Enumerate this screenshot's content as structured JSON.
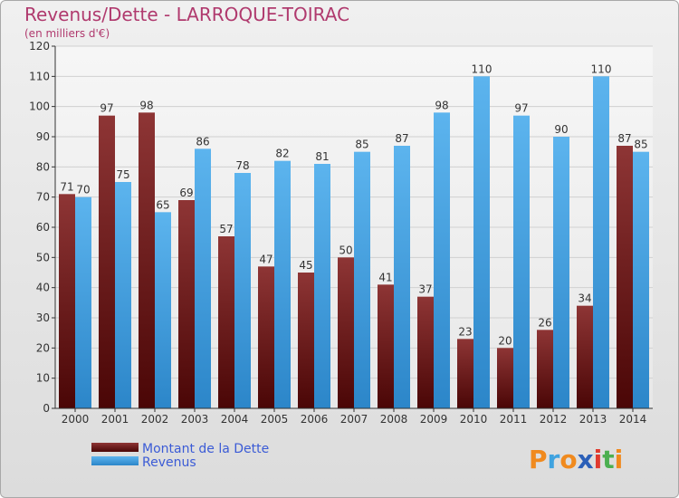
{
  "chart_data": {
    "type": "bar",
    "title": "Revenus/Dette - LARROQUE-TOIRAC",
    "subtitle": "(en milliers d'€)",
    "categories": [
      "2000",
      "2001",
      "2002",
      "2003",
      "2004",
      "2005",
      "2006",
      "2007",
      "2008",
      "2009",
      "2010",
      "2011",
      "2012",
      "2013",
      "2014"
    ],
    "series": [
      {
        "name": "Montant de la Dette",
        "color": "#7a1f1f",
        "values": [
          71,
          97,
          98,
          69,
          57,
          47,
          45,
          50,
          41,
          37,
          23,
          20,
          26,
          34,
          87
        ]
      },
      {
        "name": "Revenus",
        "color": "#3e9fe3",
        "values": [
          70,
          75,
          65,
          86,
          78,
          82,
          81,
          85,
          87,
          98,
          110,
          97,
          90,
          110,
          85
        ]
      }
    ],
    "ylim": [
      0,
      120
    ],
    "yticks": [
      0,
      10,
      20,
      30,
      40,
      50,
      60,
      70,
      80,
      90,
      100,
      110,
      120
    ],
    "xlabel": "",
    "ylabel": "",
    "grid": true
  },
  "logo": {
    "text": "Proxiti",
    "colors": [
      "#f08a1e",
      "#3fa3e0",
      "#f08a1e",
      "#2b5fb8",
      "#e03a2e",
      "#4caf50",
      "#f08a1e"
    ]
  }
}
